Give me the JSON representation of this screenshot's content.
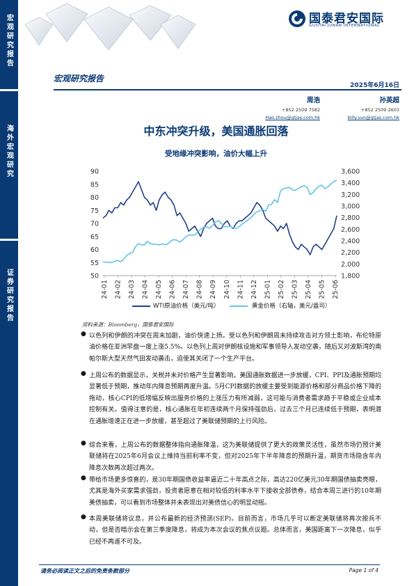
{
  "sidebar": {
    "section1": "宏观研究报告",
    "section2": "海外宏观研究",
    "section3": "证券研究报告"
  },
  "header": {
    "company_cn": "国泰君安国际",
    "company_en": "GUOTAI JUNAN INTERNATIONAL",
    "report_type": "宏观研究报告",
    "date": "2025年6月16日"
  },
  "authors": [
    {
      "name": "周浩",
      "phone": "+852 2509 7582",
      "email": "Hao.zhou@gtjas.com.hk"
    },
    {
      "name": "孙英超",
      "phone": "+852 2509 2603",
      "email": "billy.sun@gtjas.com.hk"
    }
  ],
  "title": "中东冲突升级，美国通胀回落",
  "chart_title": "受地缘冲突影响，油价大幅上升",
  "chart_data": {
    "type": "line",
    "title": "受地缘冲突影响，油价大幅上升",
    "x_ticks": [
      "24-01",
      "24-02",
      "24-03",
      "24-04",
      "24-05",
      "24-06",
      "24-07",
      "24-08",
      "24-09",
      "24-10",
      "24-11",
      "24-12",
      "25-01",
      "25-02",
      "25-03",
      "25-04",
      "25-05",
      "25-06"
    ],
    "ylim_left": [
      50,
      90
    ],
    "ylim_right": [
      1800,
      3600
    ],
    "left_ticks": [
      "90",
      "85",
      "80",
      "75",
      "70",
      "65",
      "60",
      "55",
      "50"
    ],
    "right_ticks": [
      "3,600",
      "3,400",
      "3,200",
      "3,000",
      "2,800",
      "2,600",
      "2,400",
      "2,200",
      "2,000",
      "1,800"
    ],
    "series": [
      {
        "name": "WTI原油价格（美元/吨）",
        "axis": "left",
        "color": "#1f3f8a",
        "values": [
          72,
          73,
          75,
          74,
          76,
          76,
          78,
          77,
          79,
          80,
          82,
          84,
          86,
          83,
          80,
          79,
          77,
          78,
          75,
          79,
          81,
          82,
          80,
          79,
          77,
          73,
          74,
          72,
          70,
          67,
          68,
          69,
          67,
          65,
          68,
          70,
          71,
          72,
          69,
          68,
          68,
          70,
          71,
          69,
          68,
          70,
          71,
          71,
          72,
          73,
          74,
          76,
          78,
          77,
          75,
          72,
          71,
          70,
          69,
          67,
          69,
          68,
          70,
          66,
          63,
          61,
          60,
          62,
          61,
          60,
          58,
          61,
          62,
          61,
          60,
          62,
          64,
          66,
          68,
          73
        ]
      },
      {
        "name": "黄金价格（右轴，美元/盎司）",
        "axis": "right",
        "color": "#62c2e8",
        "values": [
          2040,
          2030,
          2030,
          2025,
          2050,
          2060,
          2040,
          2080,
          2150,
          2180,
          2200,
          2300,
          2350,
          2330,
          2330,
          2390,
          2350,
          2340,
          2340,
          2330,
          2350,
          2330,
          2350,
          2400,
          2420,
          2410,
          2380,
          2420,
          2470,
          2500,
          2500,
          2500,
          2550,
          2600,
          2630,
          2640,
          2620,
          2660,
          2720,
          2750,
          2700,
          2650,
          2640,
          2650,
          2620,
          2610,
          2640,
          2690,
          2720,
          2760,
          2800,
          2860,
          2900,
          2920,
          2940,
          2910,
          3020,
          3030,
          3110,
          3060,
          3260,
          3300,
          3310,
          3320,
          3280,
          3270,
          3300,
          3330,
          3350,
          3320,
          3200,
          3230,
          3300,
          3340,
          3360,
          3300,
          3330,
          3380,
          3420,
          3440
        ]
      }
    ],
    "source": "资料来源：Bloomberg，国泰君安国际"
  },
  "legend": {
    "wti": "WTI原油价格（美元/吨）",
    "gold": "黄金价格（右轴，美元/盎司）"
  },
  "source": "资料来源：Bloomberg，国泰君安国际",
  "bullets": [
    "以色列和伊朗的冲突在周末加剧，油价快速上扬。受以色列和伊朗周末持续攻击对方领土影响，布伦特原油价格在亚洲早盘一度上涨5.5%。以色列上周对伊朗核设施和军事领导人发动空袭，随后又对波斯湾的南帕尔斯大型天然气田发动袭击，迫使其关闭了一个生产平台。",
    "上周公布的数据显示，关税并未对价格产生显著影响，美国通胀数据进一步放缓，CPI、PPI及通胀预期均显著低于预期，推动年内降息预期再度升温。5月CPI数据的放缓主要受到能源价格和部分商品价格下降的拖动，核心CPI的低增幅反映出服务价格的上涨压力有所减弱，这可能与消费者需求趋于平稳或企业成本控制有关。值得注意的是，核心通胀在年初连续两个月保持强劲后，过去三个月已连续低于预期，表明潜在通胀增速正在进一步放缓，甚至超过了美联储预期的上行风险。",
    "综合来看，上周公布的数据整体指向通胀降温，这为美联储提供了更大的政策灵活性，虽然市场仍预计美联储将在2025年6月会议上维持当前利率不变，但对2025年下半年降息的预期升温，期货市场隐含年内降息次数再次超过两次。",
    "带给市场更多惊喜的，是30年期国债收益率逼近二十年高点之际，高达220亿美元30年期国债抽卖亮眼，尤其是海外买家需求强劲，投资者愿意在相对较低的利率水平下接收全部债券，结合本周三进行的10年期美债抽卖，可以看到市场整体并未表现出对美债信心的明显动摇。",
    "本周美联储将议息，并公布最新的经济预测(SEP)。目前而言，市场几乎可以断定美联储将再次按兵不动，但是否暗示会在第三季度降息，将成为本次会议的焦点议题。总体而言，美国距离下一次降息，似乎已经不再遥不可及。"
  ],
  "footer": {
    "disclaimer": "请务必阅读正文之后的免责条款部分",
    "page": "Page 1 of 4"
  },
  "colors": {
    "brand": "#0a3a74",
    "wti": "#1f3f8a",
    "gold": "#62c2e8"
  }
}
